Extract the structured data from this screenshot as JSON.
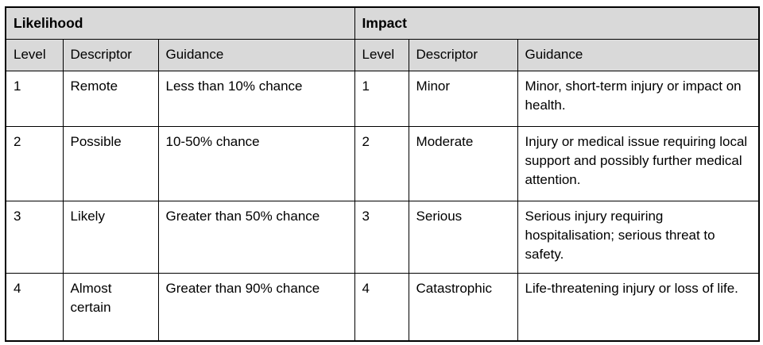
{
  "colors": {
    "header_bg": "#d9d9d9",
    "border": "#000000",
    "text": "#000000",
    "page_bg": "#ffffff"
  },
  "table": {
    "group_headers": [
      {
        "label": "Likelihood"
      },
      {
        "label": "Impact"
      }
    ],
    "column_headers": [
      "Level",
      "Descriptor",
      "Guidance",
      "Level",
      "Descriptor",
      "Guidance"
    ],
    "rows": [
      {
        "likelihood": {
          "level": "1",
          "descriptor": "Remote",
          "guidance": "Less than 10% chance"
        },
        "impact": {
          "level": "1",
          "descriptor": "Minor",
          "guidance": "Minor, short-term injury or impact on health."
        }
      },
      {
        "likelihood": {
          "level": "2",
          "descriptor": "Possible",
          "guidance": "10-50% chance"
        },
        "impact": {
          "level": "2",
          "descriptor": "Moderate",
          "guidance": "Injury or medical issue requiring local support and possibly further medical attention."
        }
      },
      {
        "likelihood": {
          "level": "3",
          "descriptor": "Likely",
          "guidance": "Greater than 50% chance"
        },
        "impact": {
          "level": "3",
          "descriptor": "Serious",
          "guidance": "Serious injury requiring hospitalisation; serious threat to safety."
        }
      },
      {
        "likelihood": {
          "level": "4",
          "descriptor": "Almost certain",
          "guidance": "Greater than 90% chance"
        },
        "impact": {
          "level": "4",
          "descriptor": "Catastrophic",
          "guidance": "Life-threatening injury or loss of life."
        }
      }
    ]
  }
}
